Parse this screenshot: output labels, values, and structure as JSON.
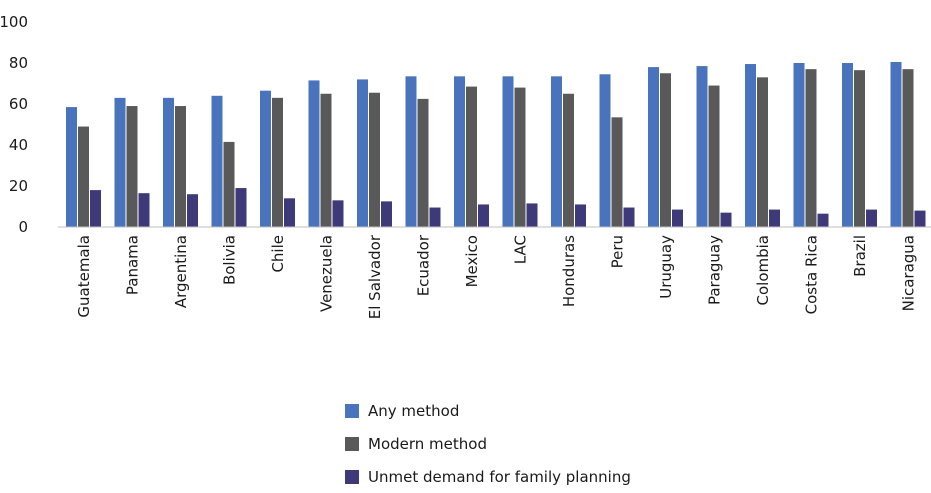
{
  "chart_data": {
    "type": "bar",
    "categories": [
      "Guatemala",
      "Panama",
      "Argentina",
      "Bolivia",
      "Chile",
      "Venezuela",
      "El Salvador",
      "Ecuador",
      "Mexico",
      "LAC",
      "Honduras",
      "Peru",
      "Uruguay",
      "Paraguay",
      "Colombia",
      "Costa Rica",
      "Brazil",
      "Nicaragua"
    ],
    "series": [
      {
        "name": "Any method",
        "color": "#4a73be",
        "values": [
          58.5,
          63,
          63,
          64,
          66.5,
          71.5,
          72,
          73.5,
          73.5,
          73.5,
          73.5,
          74.5,
          78,
          78.5,
          79.5,
          80,
          80,
          80.5
        ]
      },
      {
        "name": "Modern method",
        "color": "#595959",
        "values": [
          49,
          59,
          59,
          41.5,
          63,
          65,
          65.5,
          62.5,
          68.5,
          68,
          65,
          53.5,
          75,
          69,
          73,
          77,
          76.5,
          77
        ]
      },
      {
        "name": "Unmet demand for family planning",
        "color": "#3e3a7a",
        "values": [
          18,
          16.5,
          16,
          19,
          14,
          13,
          12.5,
          9.5,
          11,
          11.5,
          11,
          9.5,
          8.5,
          7,
          8.5,
          6.5,
          8.5,
          8
        ]
      }
    ],
    "yticks": [
      0,
      20,
      40,
      60,
      80,
      100
    ],
    "ylim": [
      0,
      100
    ],
    "grid": false,
    "legend_position": "bottom"
  },
  "legend": {
    "items": [
      {
        "label": "Any method",
        "color": "#4a73be"
      },
      {
        "label": "Modern method",
        "color": "#595959"
      },
      {
        "label": "Unmet demand for family planning",
        "color": "#3e3a7a"
      }
    ]
  }
}
